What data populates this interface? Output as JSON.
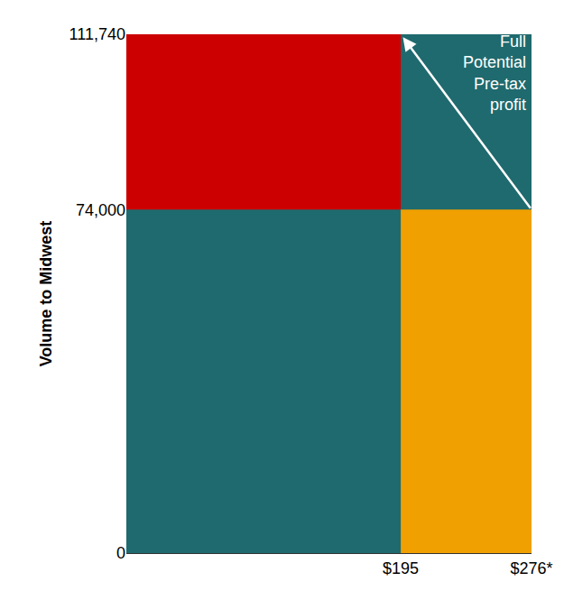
{
  "chart_data": {
    "type": "marimekko",
    "y_label": "Volume to Midwest",
    "rectangles": [
      {
        "x": [
          25,
          195
        ],
        "y": [
          74000,
          111740
        ],
        "color": "#cc0000"
      },
      {
        "x": [
          195,
          276
        ],
        "y": [
          0,
          74000
        ],
        "color": "#f0a000"
      }
    ],
    "xlim": [
      25,
      276
    ],
    "xticks": [
      {
        "value": 195,
        "label": "$195"
      },
      {
        "value": 276,
        "label": "$276*"
      }
    ],
    "ylim": [
      0,
      111740
    ],
    "yticks": [
      0,
      {
        "value": 74000,
        "label": "74,000"
      },
      {
        "value": 111740,
        "label": "111,740"
      }
    ],
    "grid": false,
    "annotations": [
      {
        "text": "Full Potential Pre-tax profit",
        "arrow_from": [
          276,
          74000
        ],
        "arrow_to": [
          195,
          111740
        ]
      }
    ]
  }
}
